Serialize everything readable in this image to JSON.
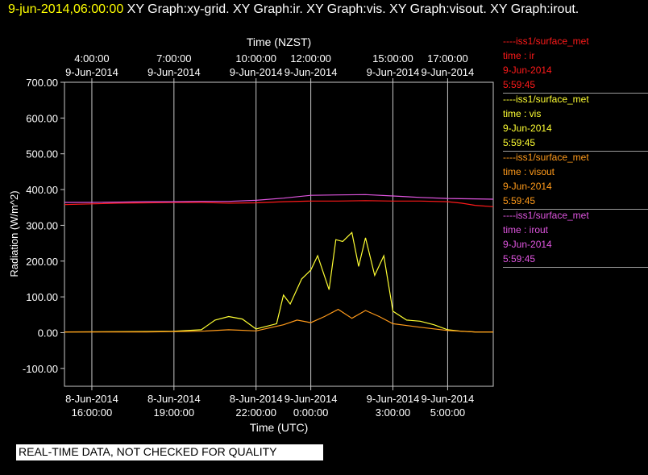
{
  "header": {
    "timestamp": "9-jun-2014,06:00:00",
    "titles": " XY Graph:xy-grid.  XY Graph:ir.  XY Graph:vis.  XY Graph:visout.  XY Graph:irout."
  },
  "legend": [
    {
      "source": "----iss1/surface_met",
      "var": "time : ir",
      "date": "9-Jun-2014",
      "time": "5:59:45",
      "color": "#ff1a1a"
    },
    {
      "source": "----iss1/surface_met",
      "var": "time : vis",
      "date": "9-Jun-2014",
      "time": "5:59:45",
      "color": "#ffff33"
    },
    {
      "source": "----iss1/surface_met",
      "var": "time : visout",
      "date": "9-Jun-2014",
      "time": "5:59:45",
      "color": "#ff9a1a"
    },
    {
      "source": "----iss1/surface_met",
      "var": "time : irout",
      "date": "9-Jun-2014",
      "time": "5:59:45",
      "color": "#e055e0"
    }
  ],
  "footer": {
    "note": "REAL-TIME DATA, NOT CHECKED FOR QUALITY"
  },
  "chart_data": {
    "type": "line",
    "xlabel": "Time (UTC)",
    "x2label": "Time (NZST)",
    "ylabel": "Radiation  (W/m^2)",
    "ylim": [
      -150,
      700
    ],
    "yticks": [
      -100,
      0,
      100,
      200,
      300,
      400,
      500,
      600,
      700
    ],
    "ytick_labels": [
      "-100.00",
      "0.00",
      "100.00",
      "200.00",
      "300.00",
      "400.00",
      "500.00",
      "600.00",
      "700.00"
    ],
    "xlim_utc": [
      "2014-06-08 15:00",
      "2014-06-09 06:40"
    ],
    "bottom_ticks": [
      {
        "t": "2014-06-08 16:00",
        "date": "8-Jun-2014",
        "time": "16:00:00"
      },
      {
        "t": "2014-06-08 19:00",
        "date": "8-Jun-2014",
        "time": "19:00:00"
      },
      {
        "t": "2014-06-08 22:00",
        "date": "8-Jun-2014",
        "time": "22:00:00"
      },
      {
        "t": "2014-06-09 00:00",
        "date": "9-Jun-2014",
        "time": "0:00:00"
      },
      {
        "t": "2014-06-09 03:00",
        "date": "9-Jun-2014",
        "time": "3:00:00"
      },
      {
        "t": "2014-06-09 05:00",
        "date": "9-Jun-2014",
        "time": "5:00:00"
      }
    ],
    "top_ticks": [
      {
        "t": "2014-06-09 04:00",
        "date": "9-Jun-2014",
        "time": "4:00:00"
      },
      {
        "t": "2014-06-09 07:00",
        "date": "9-Jun-2014",
        "time": "7:00:00"
      },
      {
        "t": "2014-06-09 10:00",
        "date": "9-Jun-2014",
        "time": "10:00:00"
      },
      {
        "t": "2014-06-09 12:00",
        "date": "9-Jun-2014",
        "time": "12:00:00"
      },
      {
        "t": "2014-06-09 15:00",
        "date": "9-Jun-2014",
        "time": "15:00:00"
      },
      {
        "t": "2014-06-09 17:00",
        "date": "9-Jun-2014",
        "time": "17:00:00"
      }
    ],
    "grid": "vertical",
    "series": [
      {
        "name": "time : ir",
        "color": "#ff1a1a",
        "x": [
          "2014-06-08 15:00",
          "2014-06-08 16:00",
          "2014-06-08 17:00",
          "2014-06-08 18:00",
          "2014-06-08 19:00",
          "2014-06-08 20:00",
          "2014-06-08 21:00",
          "2014-06-08 22:00",
          "2014-06-08 23:00",
          "2014-06-09 00:00",
          "2014-06-09 01:00",
          "2014-06-09 02:00",
          "2014-06-09 03:00",
          "2014-06-09 04:00",
          "2014-06-09 05:00",
          "2014-06-09 05:30",
          "2014-06-09 06:00",
          "2014-06-09 06:40"
        ],
        "y": [
          358,
          360,
          362,
          363,
          364,
          364,
          362,
          363,
          366,
          368,
          368,
          369,
          368,
          368,
          366,
          362,
          356,
          352
        ]
      },
      {
        "name": "time : irout",
        "color": "#e055e0",
        "x": [
          "2014-06-08 15:00",
          "2014-06-08 16:00",
          "2014-06-08 17:00",
          "2014-06-08 18:00",
          "2014-06-08 19:00",
          "2014-06-08 20:00",
          "2014-06-08 21:00",
          "2014-06-08 22:00",
          "2014-06-08 23:00",
          "2014-06-09 00:00",
          "2014-06-09 01:00",
          "2014-06-09 02:00",
          "2014-06-09 03:00",
          "2014-06-09 04:00",
          "2014-06-09 05:00",
          "2014-06-09 06:00",
          "2014-06-09 06:40"
        ],
        "y": [
          364,
          364,
          365,
          366,
          366,
          367,
          367,
          370,
          376,
          384,
          385,
          386,
          382,
          378,
          375,
          374,
          373
        ]
      },
      {
        "name": "time : vis",
        "color": "#ffff33",
        "x": [
          "2014-06-08 15:00",
          "2014-06-08 18:00",
          "2014-06-08 19:00",
          "2014-06-08 20:00",
          "2014-06-08 20:30",
          "2014-06-08 21:00",
          "2014-06-08 21:30",
          "2014-06-08 22:00",
          "2014-06-08 22:45",
          "2014-06-08 23:00",
          "2014-06-08 23:15",
          "2014-06-08 23:40",
          "2014-06-09 00:00",
          "2014-06-09 00:15",
          "2014-06-09 00:40",
          "2014-06-09 00:55",
          "2014-06-09 01:10",
          "2014-06-09 01:30",
          "2014-06-09 01:45",
          "2014-06-09 02:00",
          "2014-06-09 02:20",
          "2014-06-09 02:40",
          "2014-06-09 03:00",
          "2014-06-09 03:30",
          "2014-06-09 04:00",
          "2014-06-09 04:30",
          "2014-06-09 05:00",
          "2014-06-09 05:30",
          "2014-06-09 06:00",
          "2014-06-09 06:40"
        ],
        "y": [
          2,
          3,
          4,
          8,
          35,
          45,
          38,
          10,
          25,
          105,
          80,
          150,
          175,
          215,
          120,
          260,
          255,
          280,
          185,
          265,
          160,
          215,
          60,
          35,
          32,
          22,
          8,
          4,
          2,
          2
        ]
      },
      {
        "name": "time : visout",
        "color": "#ff9a1a",
        "x": [
          "2014-06-08 15:00",
          "2014-06-08 18:00",
          "2014-06-08 20:00",
          "2014-06-08 21:00",
          "2014-06-08 22:00",
          "2014-06-08 23:00",
          "2014-06-08 23:30",
          "2014-06-09 00:00",
          "2014-06-09 00:30",
          "2014-06-09 01:00",
          "2014-06-09 01:30",
          "2014-06-09 02:00",
          "2014-06-09 02:30",
          "2014-06-09 03:00",
          "2014-06-09 04:00",
          "2014-06-09 05:00",
          "2014-06-09 06:00",
          "2014-06-09 06:40"
        ],
        "y": [
          2,
          2,
          4,
          8,
          5,
          22,
          35,
          28,
          45,
          65,
          40,
          62,
          45,
          25,
          15,
          6,
          2,
          2
        ]
      }
    ]
  }
}
